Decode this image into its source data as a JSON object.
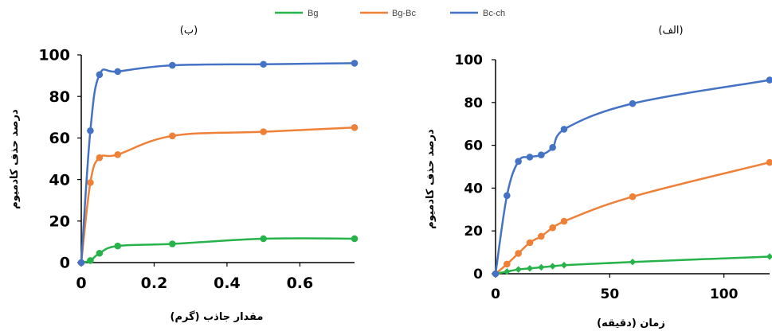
{
  "legend": [
    {
      "name": "Bg",
      "color": "#27b24a"
    },
    {
      "name": "Bg-Bc",
      "color": "#ee8137"
    },
    {
      "name": "Bc-ch",
      "color": "#4472c4"
    }
  ],
  "chart_data": [
    {
      "type": "line",
      "title": "(ب)",
      "xlabel": "مقدار جاذب (گرم)",
      "ylabel": "درصد حذف کادمیوم",
      "xlim": [
        0,
        0.75
      ],
      "ylim": [
        0,
        100
      ],
      "xticks": [
        0,
        0.2,
        0.4,
        0.6
      ],
      "xtick_labels": [
        "0",
        "0.2",
        "0.4",
        "0.6"
      ],
      "yticks": [
        0,
        20,
        40,
        60,
        80,
        100
      ],
      "ytick_labels": [
        "0",
        "20",
        "40",
        "60",
        "80",
        "100"
      ],
      "grid": false,
      "legend_position": "top",
      "series": [
        {
          "name": "Bg",
          "color": "#27b24a",
          "marker": "circle",
          "x": [
            0,
            0.025,
            0.05,
            0.1,
            0.25,
            0.5,
            0.75
          ],
          "y": [
            0,
            1,
            4.5,
            8,
            9,
            11.5,
            11.5
          ]
        },
        {
          "name": "Bg-Bc",
          "color": "#ee8137",
          "marker": "circle",
          "x": [
            0,
            0.025,
            0.05,
            0.1,
            0.25,
            0.5,
            0.75
          ],
          "y": [
            0,
            38.5,
            50.5,
            52,
            61,
            63,
            65
          ]
        },
        {
          "name": "Bc-ch",
          "color": "#4472c4",
          "marker": "circle",
          "x": [
            0,
            0.025,
            0.05,
            0.1,
            0.25,
            0.5,
            0.75
          ],
          "y": [
            0,
            63.5,
            90.5,
            92,
            95,
            95.5,
            96
          ]
        }
      ]
    },
    {
      "type": "line",
      "title": "(الف)",
      "xlabel": "زمان (دقیقه)",
      "ylabel": "درصد حذف کادمیوم",
      "xlim": [
        0,
        120
      ],
      "ylim": [
        0,
        100
      ],
      "xticks": [
        0,
        50,
        100
      ],
      "xtick_labels": [
        "0",
        "50",
        "100"
      ],
      "yticks": [
        0,
        20,
        40,
        60,
        80,
        100
      ],
      "ytick_labels": [
        "0",
        "20",
        "40",
        "60",
        "80",
        "100"
      ],
      "grid": false,
      "legend_position": "top",
      "series": [
        {
          "name": "Bg",
          "color": "#27b24a",
          "marker": "diamond",
          "x": [
            0,
            5,
            10,
            15,
            20,
            25,
            30,
            60,
            120
          ],
          "y": [
            0,
            1,
            2,
            2.5,
            3,
            3.5,
            4,
            5.5,
            8
          ]
        },
        {
          "name": "Bg-Bc",
          "color": "#ee8137",
          "marker": "circle",
          "x": [
            0,
            5,
            10,
            15,
            20,
            25,
            30,
            60,
            120
          ],
          "y": [
            0,
            4.5,
            9.5,
            14.5,
            17.5,
            21.5,
            24.5,
            36,
            52
          ]
        },
        {
          "name": "Bc-ch",
          "color": "#4472c4",
          "marker": "circle",
          "x": [
            0,
            5,
            10,
            15,
            20,
            25,
            30,
            60,
            120
          ],
          "y": [
            0,
            36.5,
            52.5,
            54.5,
            55.5,
            59,
            67.5,
            79.5,
            90.5
          ]
        }
      ]
    }
  ]
}
